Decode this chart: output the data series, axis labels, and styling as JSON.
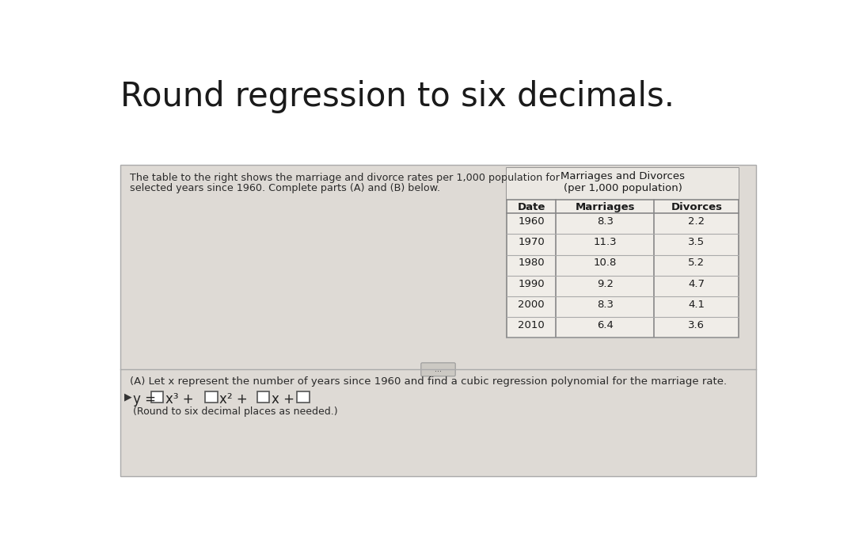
{
  "title": "Round regression to six decimals.",
  "title_fontsize": 30,
  "title_color": "#1a1a1a",
  "bg_color_top": "#ffffff",
  "bg_color_card": "#dedad5",
  "card_border": "#aaaaaa",
  "description_text_line1": "The table to the right shows the marriage and divorce rates per 1,000 population for",
  "description_text_line2": "selected years since 1960. Complete parts (A) and (B) below.",
  "table_title_line1": "Marriages and Divorces",
  "table_title_line2": "(per 1,000 population)",
  "table_headers": [
    "Date",
    "Marriages",
    "Divorces"
  ],
  "table_data": [
    [
      "1960",
      "8.3",
      "2.2"
    ],
    [
      "1970",
      "11.3",
      "3.5"
    ],
    [
      "1980",
      "10.8",
      "5.2"
    ],
    [
      "1990",
      "9.2",
      "4.7"
    ],
    [
      "2000",
      "8.3",
      "4.1"
    ],
    [
      "2010",
      "6.4",
      "3.6"
    ]
  ],
  "part_a_text": "(A) Let x represent the number of years since 1960 and find a cubic regression polynomial for the marriage rate.",
  "formula_note": "(Round to six decimal places as needed.)",
  "ellipsis": "..."
}
